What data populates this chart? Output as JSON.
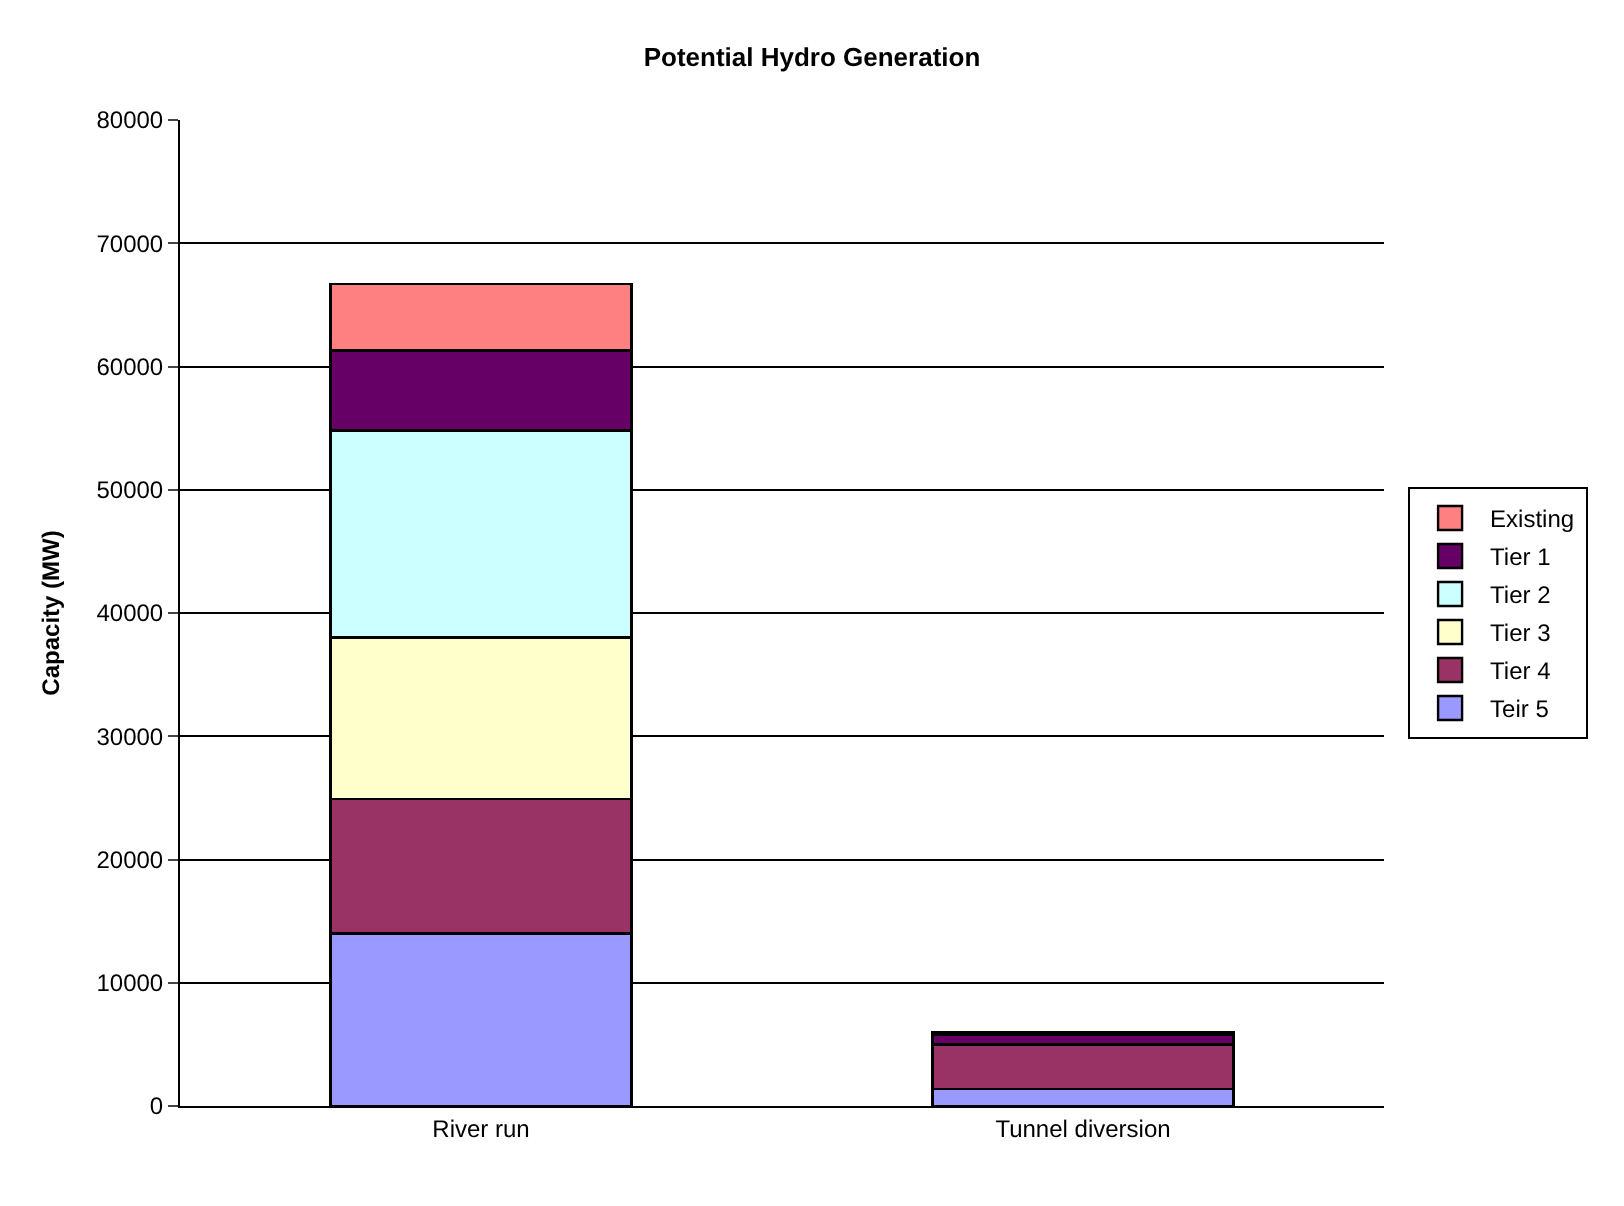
{
  "chart_data": {
    "type": "bar",
    "title": "Potential Hydro Generation",
    "ylabel": "Capacity (MW)",
    "categories": [
      "River run",
      "Tunnel diversion"
    ],
    "stacked": true,
    "series": [
      {
        "name": "Teir 5",
        "color": "#9999ff",
        "values": [
          14000,
          1400
        ]
      },
      {
        "name": "Tier 4",
        "color": "#993366",
        "values": [
          10900,
          3600
        ]
      },
      {
        "name": "Tier 3",
        "color": "#ffffcc",
        "values": [
          13100,
          0
        ]
      },
      {
        "name": "Tier 2",
        "color": "#ccffff",
        "values": [
          16800,
          0
        ]
      },
      {
        "name": "Tier 1",
        "color": "#660066",
        "values": [
          6500,
          800
        ]
      },
      {
        "name": "Existing",
        "color": "#ff8080",
        "values": [
          5400,
          200
        ]
      }
    ],
    "ylim": [
      0,
      80000
    ],
    "yticks": [
      0,
      10000,
      20000,
      30000,
      40000,
      50000,
      60000,
      70000,
      80000
    ],
    "grid": "y",
    "legend": "right"
  }
}
